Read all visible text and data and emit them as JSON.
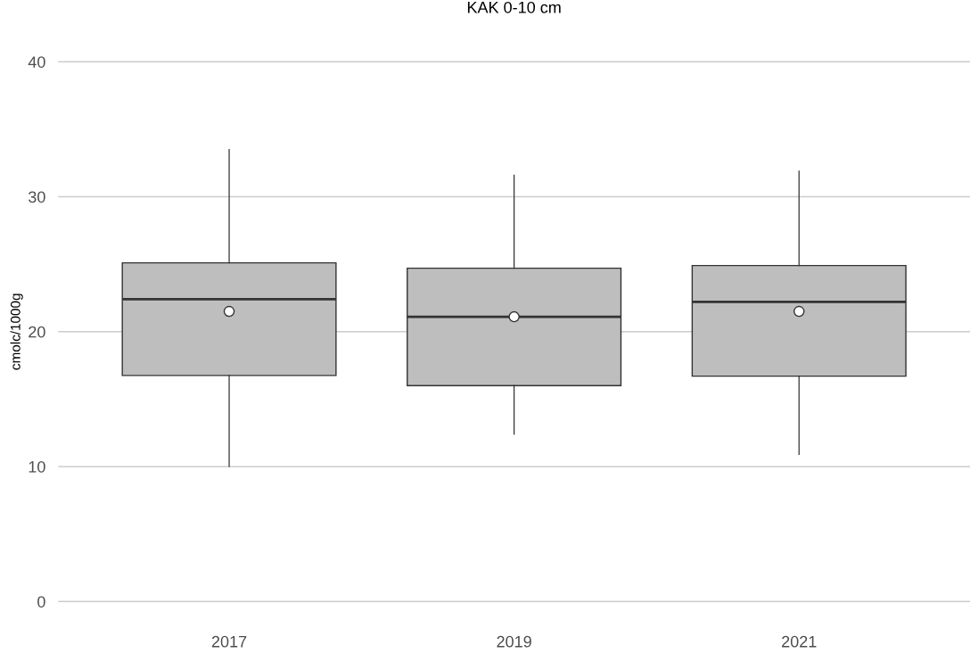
{
  "chart_data": {
    "type": "box",
    "title": "KAK 0-10 cm",
    "ylabel": "cmolc/1000g",
    "categories": [
      "2017",
      "2019",
      "2021"
    ],
    "boxes": [
      {
        "low": 10.0,
        "q1": 16.75,
        "q3": 25.1,
        "median": 22.4,
        "high": 33.5,
        "mean": 21.5
      },
      {
        "low": 12.4,
        "q1": 16.0,
        "q3": 24.7,
        "median": 21.1,
        "high": 31.6,
        "mean": 21.1
      },
      {
        "low": 10.9,
        "q1": 16.7,
        "q3": 24.9,
        "median": 22.2,
        "high": 31.9,
        "mean": 21.5
      }
    ],
    "color": "#bebebe",
    "ylim": [
      0,
      40
    ],
    "yticks": [
      0,
      10,
      20,
      30,
      40
    ],
    "grid": "y",
    "legend": false
  }
}
